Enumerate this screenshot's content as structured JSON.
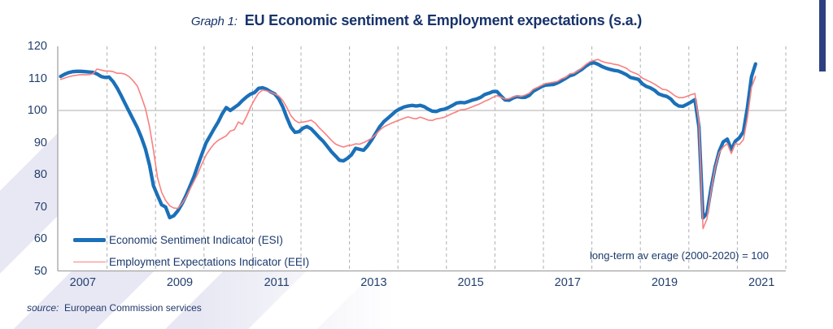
{
  "title": {
    "prefix": "Graph 1:",
    "text": "EU Economic sentiment & Employment expectations (s.a.)"
  },
  "legend": {
    "items": [
      {
        "label": "Economic Sentiment Indicator (ESI)",
        "color": "#1B70B8",
        "thickness": 4.5
      },
      {
        "label": "Employment Expectations Indicator (EEI)",
        "color": "#F98080",
        "thickness": 1.6
      }
    ]
  },
  "annotation": "long-term av erage (2000-2020) = 100",
  "source": {
    "prefix": "source:",
    "text": "European Commission services"
  },
  "colors": {
    "esi_line": "#1B70B8",
    "eei_line": "#F98080",
    "text_navy": "#1C3A6E",
    "axis_gray": "#A3A3A3",
    "grid_gray": "#AFAFAF",
    "ref_line_gray": "#BDBDBD",
    "edge_bar_navy": "#2E4080"
  },
  "chart_data": {
    "type": "line",
    "x_start": "2007-01",
    "x_end": "2021-05",
    "frequency": "monthly",
    "ylim": [
      50,
      120
    ],
    "y_ticks": [
      50,
      60,
      70,
      80,
      90,
      100,
      110,
      120
    ],
    "x_tick_labels": [
      "2007",
      "2009",
      "2011",
      "2013",
      "2015",
      "2017",
      "2019",
      "2021"
    ],
    "x_tick_years": [
      2007,
      2009,
      2011,
      2013,
      2015,
      2017,
      2019,
      2021
    ],
    "grid": "vertical dashed lines at each year 2008-2022",
    "reference_line": 100,
    "legend_position": "bottom-left inside plot",
    "title": "EU Economic sentiment & Employment expectations (s.a.)",
    "series": [
      {
        "name": "Economic Sentiment Indicator (ESI)",
        "color": "#1B70B8",
        "width": 4.3,
        "values": [
          110.6,
          111.3,
          111.8,
          112.1,
          112.2,
          112.2,
          112.1,
          112.0,
          111.9,
          111.4,
          110.6,
          110.3,
          110.4,
          109.0,
          107.0,
          104.6,
          102.1,
          99.6,
          97.1,
          94.6,
          91.6,
          88.0,
          83.0,
          76.5,
          73.5,
          70.6,
          69.9,
          66.6,
          67.2,
          68.7,
          70.8,
          73.4,
          76.3,
          79.4,
          83.0,
          86.5,
          89.9,
          92.1,
          94.3,
          96.4,
          98.9,
          100.9,
          100.0,
          100.9,
          101.8,
          103.1,
          104.2,
          105.1,
          105.6,
          106.9,
          107.1,
          106.6,
          105.8,
          105.2,
          103.6,
          101.1,
          97.8,
          94.8,
          93.2,
          93.4,
          94.5,
          95.0,
          94.3,
          93.0,
          91.6,
          90.4,
          88.8,
          87.2,
          85.9,
          84.5,
          84.3,
          85.1,
          86.2,
          88.2,
          87.9,
          87.6,
          89.0,
          90.8,
          92.9,
          95.0,
          96.5,
          97.6,
          98.7,
          99.8,
          100.5,
          101.1,
          101.4,
          101.6,
          101.4,
          101.6,
          101.2,
          100.4,
          99.8,
          99.7,
          100.2,
          100.4,
          100.9,
          101.6,
          102.3,
          102.5,
          102.4,
          102.8,
          103.3,
          103.6,
          104.1,
          105.0,
          105.4,
          105.9,
          105.9,
          104.5,
          103.3,
          103.2,
          103.9,
          104.3,
          104.1,
          104.1,
          104.7,
          106.0,
          106.7,
          107.4,
          107.9,
          108.0,
          108.1,
          108.6,
          109.3,
          110.0,
          110.8,
          111.2,
          112.0,
          112.8,
          113.8,
          114.6,
          114.9,
          114.4,
          113.7,
          113.2,
          112.8,
          112.5,
          112.3,
          111.8,
          111.2,
          110.3,
          110.0,
          109.7,
          108.3,
          107.5,
          107.0,
          106.3,
          105.2,
          104.7,
          104.4,
          103.6,
          102.2,
          101.4,
          101.3,
          101.9,
          102.6,
          103.4,
          94.8,
          66.5,
          68.0,
          75.8,
          82.4,
          87.3,
          90.2,
          91.1,
          87.8,
          90.4,
          91.5,
          93.4,
          100.9,
          110.5,
          114.5
        ]
      },
      {
        "name": "Employment Expectations Indicator (EEI)",
        "color": "#F98080",
        "width": 1.6,
        "values": [
          109.7,
          110.1,
          110.5,
          110.8,
          111.0,
          111.2,
          111.1,
          111.2,
          111.4,
          112.9,
          112.6,
          112.3,
          112.3,
          112.1,
          111.6,
          111.6,
          111.3,
          110.5,
          109.2,
          107.6,
          104.3,
          100.6,
          95.0,
          87.5,
          79.0,
          74.5,
          72.0,
          70.3,
          69.6,
          69.5,
          70.9,
          72.9,
          75.4,
          77.9,
          80.4,
          83.4,
          86.1,
          88.0,
          89.6,
          90.7,
          91.4,
          92.1,
          93.6,
          94.0,
          96.4,
          95.7,
          98.1,
          101.0,
          103.4,
          105.4,
          106.4,
          106.1,
          105.7,
          105.2,
          104.5,
          103.1,
          100.9,
          98.4,
          96.9,
          96.2,
          96.4,
          96.6,
          97.0,
          96.1,
          94.6,
          93.4,
          92.1,
          90.7,
          89.6,
          89.0,
          88.6,
          89.0,
          89.2,
          89.6,
          89.5,
          90.0,
          90.6,
          91.4,
          92.5,
          93.9,
          94.9,
          95.5,
          96.1,
          96.6,
          97.1,
          97.6,
          98.0,
          97.6,
          97.4,
          97.9,
          97.5,
          97.0,
          96.9,
          97.4,
          97.6,
          97.9,
          98.5,
          99.1,
          99.6,
          100.2,
          100.3,
          100.7,
          101.2,
          101.7,
          102.2,
          102.9,
          103.4,
          104.1,
          104.6,
          104.1,
          103.6,
          103.7,
          104.2,
          104.6,
          104.4,
          104.8,
          105.4,
          106.6,
          107.2,
          107.8,
          108.4,
          108.6,
          108.8,
          109.1,
          109.9,
          110.3,
          111.4,
          111.6,
          112.3,
          113.2,
          114.3,
          115.2,
          115.6,
          115.9,
          115.3,
          114.9,
          114.7,
          114.4,
          114.2,
          113.7,
          113.2,
          112.2,
          111.7,
          111.2,
          110.1,
          109.5,
          108.9,
          108.2,
          107.4,
          106.6,
          106.4,
          105.6,
          104.6,
          104.0,
          104.0,
          104.4,
          104.9,
          105.3,
          96.2,
          63.2,
          66.2,
          75.0,
          82.2,
          86.8,
          88.6,
          89.7,
          86.6,
          89.7,
          89.4,
          90.9,
          97.7,
          107.2,
          110.6
        ]
      }
    ]
  }
}
